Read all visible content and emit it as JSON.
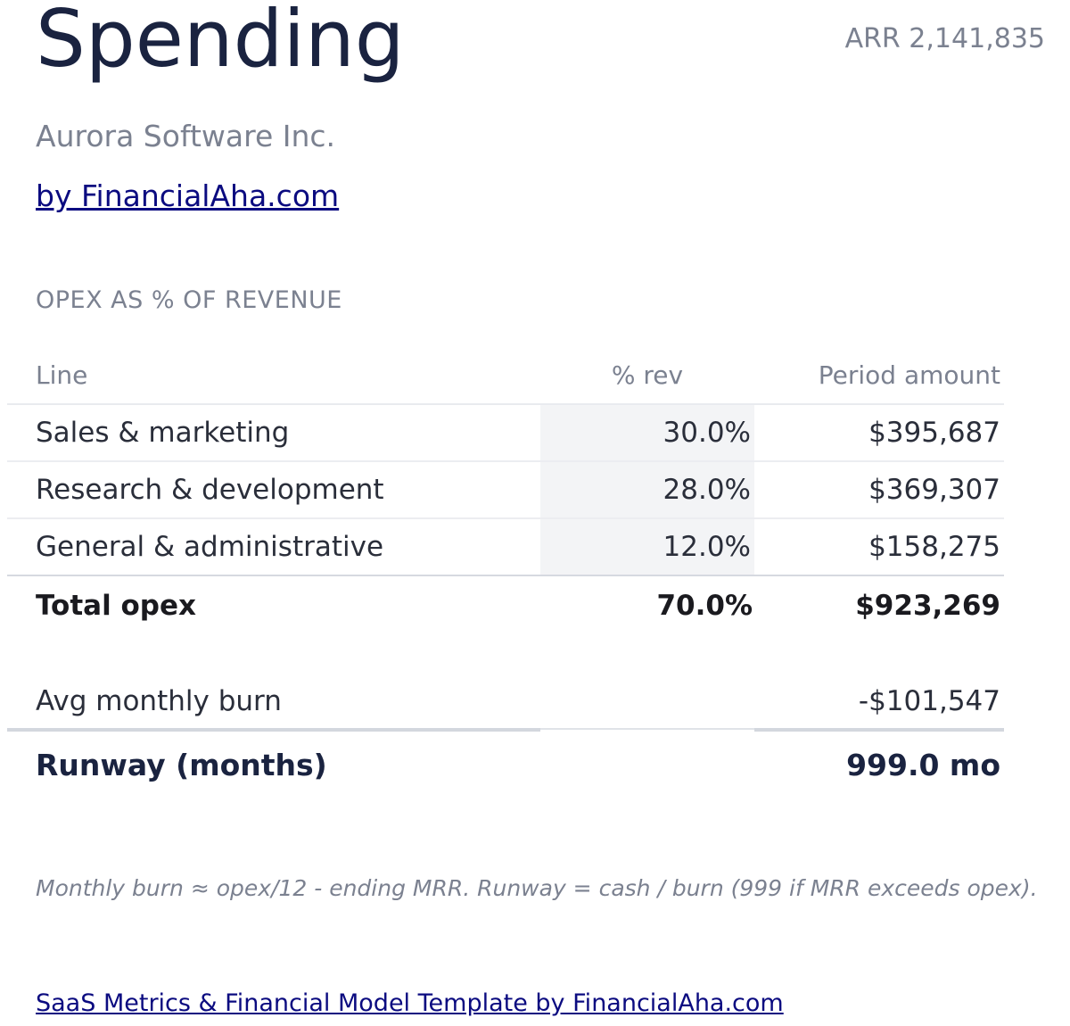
{
  "header": {
    "title": "Spending",
    "arr": "ARR 2,141,835",
    "company": "Aurora Software Inc.",
    "byline": "by FinancialAha.com"
  },
  "section_title": "OPEX AS % OF REVENUE",
  "table": {
    "columns": [
      "Line",
      "% rev",
      "Period amount"
    ],
    "rows": [
      {
        "line": "Sales & marketing",
        "pct": "30.0%",
        "amount": "$395,687"
      },
      {
        "line": "Research & development",
        "pct": "28.0%",
        "amount": "$369,307"
      },
      {
        "line": "General & administrative",
        "pct": "12.0%",
        "amount": "$158,275"
      }
    ],
    "total": {
      "line": "Total opex",
      "pct": "70.0%",
      "amount": "$923,269"
    }
  },
  "burn": {
    "label": "Avg monthly burn",
    "value": "-$101,547"
  },
  "runway": {
    "label": "Runway (months)",
    "value": "999.0 mo"
  },
  "note": "Monthly burn ≈ opex/12 - ending MRR. Runway = cash / burn (999 if MRR exceeds opex).",
  "footer_link": "SaaS Metrics & Financial Model Template by FinancialAha.com"
}
